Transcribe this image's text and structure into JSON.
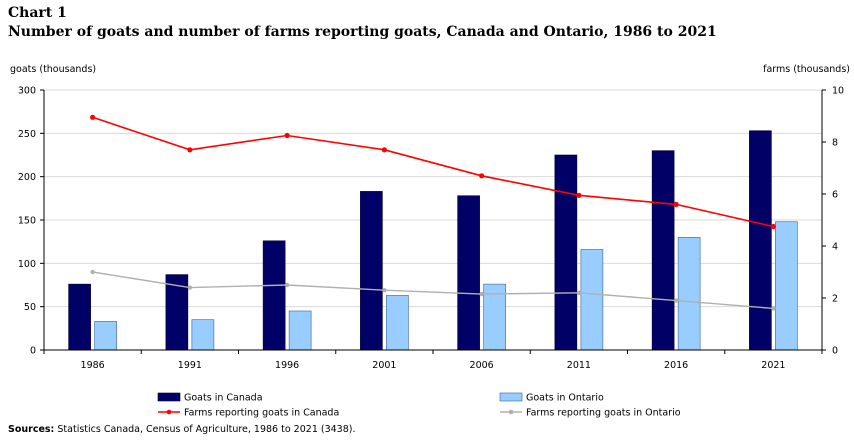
{
  "chart_data": {
    "type": "bar",
    "label": "Chart 1",
    "title": "Number of goats and number of farms reporting goats, Canada and Ontario, 1986 to 2021",
    "ylabel_left": "goats (thousands)",
    "ylabel_right": "farms (thousands)",
    "categories": [
      "1986",
      "1991",
      "1996",
      "2001",
      "2006",
      "2011",
      "2016",
      "2021"
    ],
    "y_left": {
      "min": 0,
      "max": 300,
      "ticks": [
        "0",
        "50",
        "100",
        "150",
        "200",
        "250",
        "300"
      ]
    },
    "y_right": {
      "min": 0,
      "max": 10,
      "ticks": [
        "0",
        "2",
        "4",
        "6",
        "8",
        "10"
      ]
    },
    "grid": true,
    "series": [
      {
        "name": "Goats in Canada",
        "type": "bar",
        "axis": "left",
        "color": "#000066",
        "values": [
          76,
          87,
          126,
          183,
          178,
          225,
          230,
          253
        ]
      },
      {
        "name": "Goats in Ontario",
        "type": "bar",
        "axis": "left",
        "color": "#99ccff",
        "values": [
          33,
          35,
          45,
          63,
          76,
          116,
          130,
          148
        ]
      },
      {
        "name": "Farms reporting goats in Canada",
        "type": "line",
        "axis": "right",
        "color": "#ff0000",
        "values": [
          8.95,
          7.7,
          8.25,
          7.7,
          6.7,
          5.95,
          5.6,
          4.75
        ]
      },
      {
        "name": "Farms reporting goats in Ontario",
        "type": "line",
        "axis": "right",
        "color": "#b0b0b0",
        "values": [
          3.0,
          2.4,
          2.5,
          2.3,
          2.15,
          2.2,
          1.9,
          1.6
        ]
      }
    ],
    "legend_position": "bottom"
  },
  "source": {
    "label": "Sources:",
    "text": "Statistics Canada, Census of Agriculture, 1986 to 2021 (3438)."
  }
}
